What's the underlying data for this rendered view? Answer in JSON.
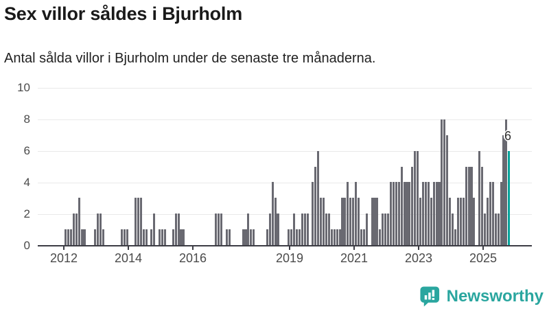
{
  "header": {
    "title": "Sex villor såldes i Bjurholm",
    "subtitle": "Antal sålda villor i Bjurholm under de senaste tre månaderna."
  },
  "chart_data": {
    "type": "bar",
    "title": "Sex villor såldes i Bjurholm",
    "subtitle": "Antal sålda villor i Bjurholm under de senaste tre månaderna.",
    "series_description": "monthly count, rolling three-month sales, one bar per month",
    "start_month": "2012-01",
    "values": [
      1,
      1,
      1,
      2,
      2,
      3,
      1,
      1,
      0,
      0,
      0,
      1,
      2,
      2,
      1,
      0,
      0,
      0,
      0,
      0,
      0,
      1,
      1,
      1,
      0,
      0,
      3,
      3,
      3,
      1,
      1,
      0,
      1,
      2,
      0,
      1,
      1,
      1,
      0,
      0,
      1,
      2,
      2,
      1,
      1,
      0,
      0,
      0,
      0,
      0,
      0,
      0,
      0,
      0,
      0,
      0,
      2,
      2,
      2,
      0,
      1,
      1,
      0,
      0,
      0,
      0,
      1,
      1,
      2,
      1,
      1,
      0,
      0,
      0,
      0,
      1,
      2,
      4,
      3,
      2,
      0,
      0,
      0,
      1,
      1,
      2,
      1,
      1,
      2,
      2,
      2,
      0,
      4,
      5,
      6,
      3,
      3,
      2,
      2,
      1,
      1,
      1,
      1,
      3,
      3,
      4,
      3,
      3,
      4,
      3,
      1,
      1,
      2,
      0,
      3,
      3,
      3,
      1,
      2,
      2,
      2,
      4,
      4,
      4,
      4,
      5,
      4,
      4,
      4,
      5,
      6,
      6,
      3,
      4,
      4,
      4,
      3,
      4,
      4,
      4,
      8,
      8,
      7,
      3,
      2,
      1,
      3,
      3,
      3,
      5,
      5,
      5,
      3,
      0,
      6,
      5,
      2,
      3,
      4,
      4,
      2,
      2,
      4,
      7,
      8,
      6
    ],
    "last_value": 6,
    "last_value_label": "6",
    "highlight": "last-bar",
    "bar_color": "#696971",
    "highlight_color": "#00a39b",
    "ylim": [
      0,
      10
    ],
    "y_ticks": [
      0,
      2,
      4,
      6,
      8,
      10
    ],
    "y_tick_labels": [
      "10",
      "8",
      "6",
      "4",
      "2",
      "0"
    ],
    "x_tick_labels": [
      "2012",
      "2014",
      "2016",
      "2019",
      "2021",
      "2023",
      "2025"
    ],
    "grid": true,
    "legend": "none"
  },
  "annotation": {
    "label": "6"
  },
  "branding": {
    "name": "Newsworthy",
    "icon": "newsworthy-speech-bubble-bar-chart-icon",
    "color": "#2aa69f"
  }
}
